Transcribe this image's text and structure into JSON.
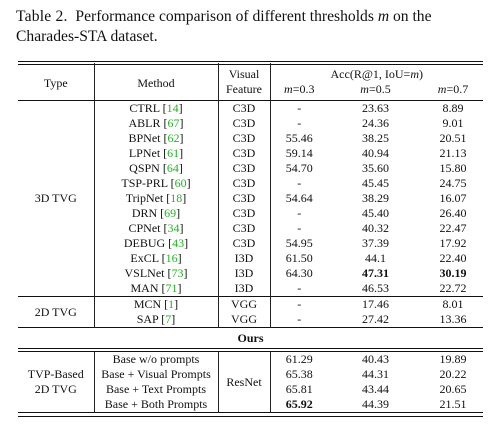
{
  "caption": {
    "label": "Table 2.",
    "text_before_m": "Performance comparison of different thresholds",
    "m": "m",
    "text_after_m": "on the Charades-STA dataset."
  },
  "headers": {
    "type": "Type",
    "method": "Method",
    "visual_feature_1": "Visual",
    "visual_feature_2": "Feature",
    "acc": "Acc(R@1, IoU=",
    "acc_m": "m",
    "acc_close": ")",
    "m03": "=0.3",
    "m05": "=0.5",
    "m07": "=0.7"
  },
  "group_3d": {
    "type": "3D TVG",
    "rows": [
      {
        "name": "CTRL",
        "cite": "14",
        "feat": "C3D",
        "r03": "-",
        "r05": "23.63",
        "r07": "8.89"
      },
      {
        "name": "ABLR",
        "cite": "67",
        "feat": "C3D",
        "r03": "-",
        "r05": "24.36",
        "r07": "9.01"
      },
      {
        "name": "BPNet",
        "cite": "62",
        "feat": "C3D",
        "r03": "55.46",
        "r05": "38.25",
        "r07": "20.51"
      },
      {
        "name": "LPNet",
        "cite": "61",
        "feat": "C3D",
        "r03": "59.14",
        "r05": "40.94",
        "r07": "21.13"
      },
      {
        "name": "QSPN",
        "cite": "64",
        "feat": "C3D",
        "r03": "54.70",
        "r05": "35.60",
        "r07": "15.80"
      },
      {
        "name": "TSP-PRL",
        "cite": "60",
        "feat": "C3D",
        "r03": "-",
        "r05": "45.45",
        "r07": "24.75"
      },
      {
        "name": "TripNet",
        "cite": "18",
        "feat": "C3D",
        "r03": "54.64",
        "r05": "38.29",
        "r07": "16.07"
      },
      {
        "name": "DRN",
        "cite": "69",
        "feat": "C3D",
        "r03": "-",
        "r05": "45.40",
        "r07": "26.40"
      },
      {
        "name": "CPNet",
        "cite": "34",
        "feat": "C3D",
        "r03": "-",
        "r05": "40.32",
        "r07": "22.47"
      },
      {
        "name": "DEBUG",
        "cite": "43",
        "feat": "C3D",
        "r03": "54.95",
        "r05": "37.39",
        "r07": "17.92"
      },
      {
        "name": "ExCL",
        "cite": "16",
        "feat": "I3D",
        "r03": "61.50",
        "r05": "44.1",
        "r07": "22.40"
      },
      {
        "name": "VSLNet",
        "cite": "73",
        "feat": "I3D",
        "r03": "64.30",
        "r05": "47.31",
        "r07": "30.19"
      },
      {
        "name": "MAN",
        "cite": "71",
        "feat": "I3D",
        "r03": "-",
        "r05": "46.53",
        "r07": "22.72"
      }
    ]
  },
  "group_2d": {
    "type": "2D TVG",
    "rows": [
      {
        "name": "MCN",
        "cite": "1",
        "feat": "VGG",
        "r03": "-",
        "r05": "17.46",
        "r07": "8.01"
      },
      {
        "name": "SAP",
        "cite": "7",
        "feat": "VGG",
        "r03": "-",
        "r05": "27.42",
        "r07": "13.36"
      }
    ]
  },
  "ours_label": "Ours",
  "group_tvp": {
    "type_1": "TVP-Based",
    "type_2": "2D TVG",
    "feat": "ResNet",
    "rows": [
      {
        "name": "Base w/o prompts",
        "r03": "61.29",
        "r05": "40.43",
        "r07": "19.89"
      },
      {
        "name": "Base + Visual Prompts",
        "r03": "65.38",
        "r05": "44.31",
        "r07": "20.22"
      },
      {
        "name": "Base + Text Prompts",
        "r03": "65.81",
        "r05": "43.44",
        "r07": "20.65"
      },
      {
        "name": "Base + Both Prompts",
        "r03": "65.92",
        "r05": "44.39",
        "r07": "21.51"
      }
    ]
  }
}
